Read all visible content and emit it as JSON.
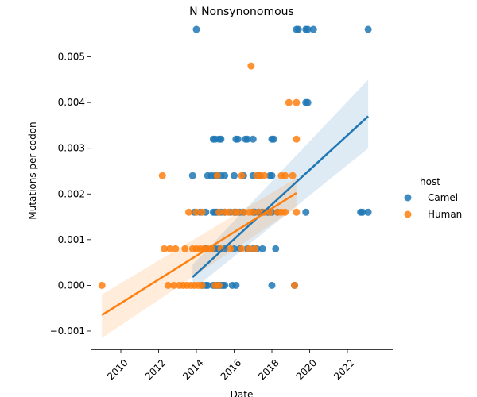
{
  "chart_data": {
    "type": "scatter",
    "title": "N Nonsynonomous",
    "xlabel": "Date",
    "ylabel": "Mutations per codon",
    "xlim": [
      2008.4,
      2024.4
    ],
    "ylim": [
      -0.0014,
      0.006
    ],
    "xticks": [
      2010,
      2012,
      2014,
      2016,
      2018,
      2020,
      2022
    ],
    "xtick_labels": [
      "2010",
      "2012",
      "2014",
      "2016",
      "2018",
      "2020",
      "2022"
    ],
    "yticks": [
      -0.001,
      0.0,
      0.001,
      0.002,
      0.003,
      0.004,
      0.005
    ],
    "ytick_labels": [
      "−0.001",
      "0.000",
      "0.001",
      "0.002",
      "0.003",
      "0.004",
      "0.005"
    ],
    "legend": {
      "title": "host",
      "placement": "right"
    },
    "series": [
      {
        "name": "Camel",
        "color": "#1f77b4",
        "fit": {
          "x": [
            2013.8,
            2023.1
          ],
          "y": [
            0.00018,
            0.0037
          ],
          "ci_lo": [
            -0.0001,
            0.003
          ],
          "ci_hi": [
            0.00045,
            0.0045
          ]
        },
        "x": [
          2014.0,
          2019.3,
          2019.4,
          2019.8,
          2019.9,
          2020.2,
          2023.1,
          2019.8,
          2019.9,
          2014.9,
          2015.0,
          2015.2,
          2015.3,
          2016.1,
          2016.2,
          2016.6,
          2016.7,
          2017.0,
          2018.0,
          2018.1,
          2013.8,
          2014.6,
          2014.8,
          2015.0,
          2015.1,
          2015.3,
          2015.5,
          2016.0,
          2016.5,
          2017.0,
          2017.3,
          2017.9,
          2018.0,
          2013.9,
          2014.2,
          2014.5,
          2014.9,
          2015.0,
          2015.1,
          2015.3,
          2015.5,
          2015.8,
          2016.0,
          2016.1,
          2016.3,
          2016.5,
          2017.0,
          2017.1,
          2017.3,
          2017.5,
          2017.8,
          2018.0,
          2018.3,
          2019.8,
          2022.7,
          2022.8,
          2023.1,
          2014.5,
          2014.8,
          2015.0,
          2015.2,
          2015.5,
          2016.0,
          2016.3,
          2016.7,
          2017.0,
          2017.2,
          2017.5,
          2018.2,
          2014.3,
          2014.5,
          2014.6,
          2014.9,
          2015.0,
          2015.1,
          2015.2,
          2015.3,
          2015.4,
          2015.5,
          2015.9,
          2016.1,
          2018.0,
          2019.2
        ],
        "y": [
          0.0056,
          0.0056,
          0.0056,
          0.0056,
          0.0056,
          0.0056,
          0.0056,
          0.004,
          0.004,
          0.0032,
          0.0032,
          0.0032,
          0.0032,
          0.0032,
          0.0032,
          0.0032,
          0.0032,
          0.0032,
          0.0032,
          0.0032,
          0.0024,
          0.0024,
          0.0024,
          0.0024,
          0.0024,
          0.0024,
          0.0024,
          0.0024,
          0.0024,
          0.0024,
          0.0024,
          0.0024,
          0.0024,
          0.0016,
          0.0016,
          0.0016,
          0.0016,
          0.0016,
          0.0016,
          0.0016,
          0.0016,
          0.0016,
          0.0016,
          0.0016,
          0.0016,
          0.0016,
          0.0016,
          0.0016,
          0.0016,
          0.0016,
          0.0016,
          0.0016,
          0.0016,
          0.0016,
          0.0016,
          0.0016,
          0.0016,
          0.0008,
          0.0008,
          0.0008,
          0.0008,
          0.0008,
          0.0008,
          0.0008,
          0.0008,
          0.0008,
          0.0008,
          0.0008,
          0.0008,
          0.0,
          0.0,
          0.0,
          0.0,
          0.0,
          0.0,
          0.0,
          0.0,
          0.0,
          0.0,
          0.0,
          0.0,
          0.0,
          0.0
        ]
      },
      {
        "name": "Human",
        "color": "#ff7f0e",
        "fit": {
          "x": [
            2009.0,
            2019.3
          ],
          "y": [
            -0.00065,
            0.00202
          ],
          "ci_lo": [
            -0.00115,
            0.0017
          ],
          "ci_hi": [
            -0.0002,
            0.00235
          ]
        },
        "x": [
          2016.9,
          2018.9,
          2019.3,
          2019.3,
          2012.2,
          2015.1,
          2016.4,
          2017.2,
          2017.4,
          2017.6,
          2018.5,
          2018.7,
          2019.1,
          2013.6,
          2014.0,
          2014.3,
          2015.2,
          2015.5,
          2015.7,
          2016.0,
          2016.2,
          2016.5,
          2016.8,
          2017.0,
          2017.3,
          2017.6,
          2017.9,
          2018.3,
          2018.5,
          2018.7,
          2019.3,
          2012.3,
          2012.6,
          2012.9,
          2013.4,
          2013.8,
          2014.0,
          2014.2,
          2014.4,
          2014.6,
          2014.8,
          2015.3,
          2015.8,
          2016.4,
          2016.8,
          2017.1,
          2009.0,
          2012.5,
          2012.8,
          2013.1,
          2013.3,
          2013.5,
          2013.7,
          2013.9,
          2014.1,
          2014.3,
          2015.0,
          2015.2,
          2019.2
        ],
        "y": [
          0.0048,
          0.004,
          0.004,
          0.0032,
          0.0024,
          0.0024,
          0.0024,
          0.0024,
          0.0024,
          0.0024,
          0.0024,
          0.0024,
          0.0024,
          0.0016,
          0.0016,
          0.0016,
          0.0016,
          0.0016,
          0.0016,
          0.0016,
          0.0016,
          0.0016,
          0.0016,
          0.0016,
          0.0016,
          0.0016,
          0.0016,
          0.0016,
          0.0016,
          0.0016,
          0.0016,
          0.0008,
          0.0008,
          0.0008,
          0.0008,
          0.0008,
          0.0008,
          0.0008,
          0.0008,
          0.0008,
          0.0008,
          0.0008,
          0.0008,
          0.0008,
          0.0008,
          0.0008,
          0.0,
          0.0,
          0.0,
          0.0,
          0.0,
          0.0,
          0.0,
          0.0,
          0.0,
          0.0,
          0.0,
          0.0,
          0.0
        ]
      }
    ]
  }
}
